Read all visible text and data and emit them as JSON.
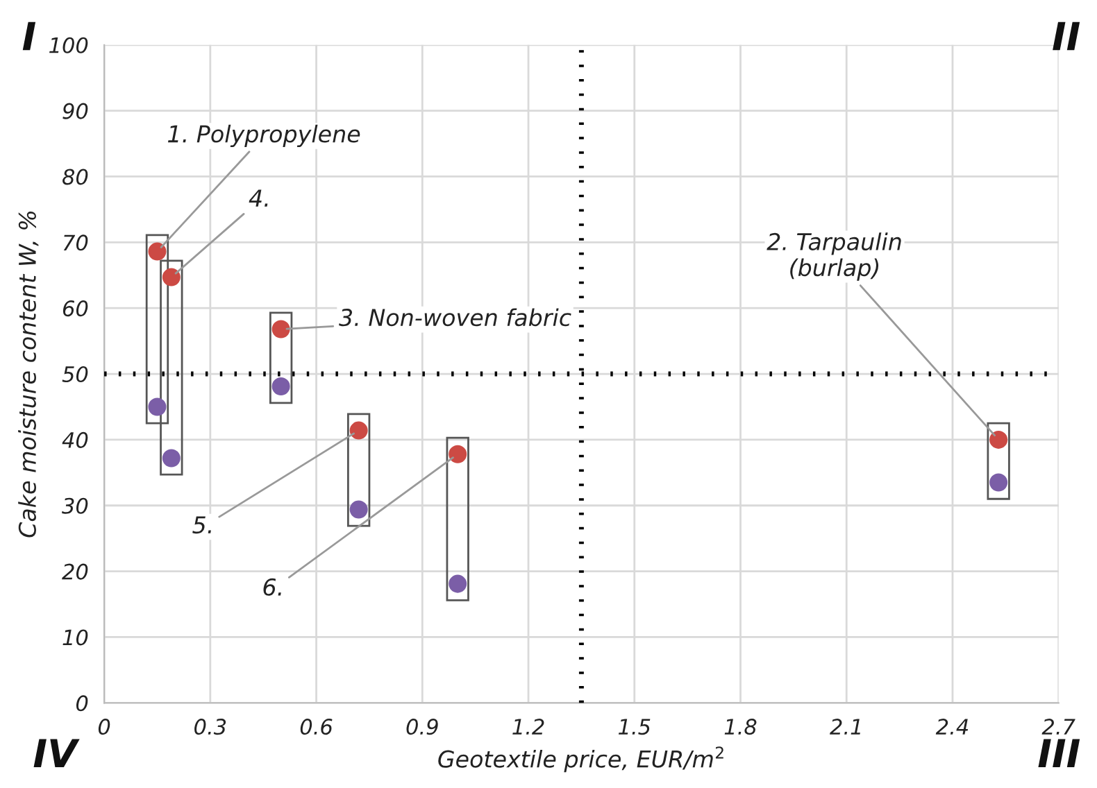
{
  "chart_data": {
    "type": "scatter",
    "xlabel": "Geotextile price, EUR/m$^{2}$",
    "ylabel": "Cake moisture content W, %",
    "series": [
      {
        "color": "#cc4a44",
        "x": [
          0.15,
          2.53,
          0.5,
          0.19,
          0.72,
          1.0
        ],
        "values": [
          68.6,
          40,
          56.8,
          64.7,
          41.4,
          37.8
        ]
      },
      {
        "color": "#7b5ea7",
        "x": [
          0.15,
          2.53,
          0.5,
          0.19,
          0.72,
          1.0
        ],
        "values": [
          45,
          33.5,
          48.1,
          37.2,
          29.4,
          18.1
        ]
      }
    ],
    "xlim": [
      0,
      2.7
    ],
    "xticks": [
      0,
      0.3,
      0.6,
      0.9,
      1.2,
      1.5,
      1.8,
      2.1,
      2.4,
      2.7
    ],
    "ylim": [
      0,
      100
    ],
    "yticks": [
      0,
      10,
      20,
      30,
      40,
      50,
      60,
      70,
      80,
      90,
      100
    ],
    "grid": true,
    "marker": "circle",
    "ref_lines": [
      {
        "axis": "y",
        "value": 50,
        "line_style": "dotted",
        "color": "#000000"
      },
      {
        "axis": "x",
        "value": 1.35,
        "line_style": "dotted",
        "color": "#000000"
      }
    ],
    "annotations": [
      {
        "text": "1. Polypropylene",
        "x": 0.15,
        "y": 68.6
      },
      {
        "text": "2. Tarpaulin\n(burlap)",
        "x": 2.53,
        "y": 40
      },
      {
        "text": "3. Non-woven fabric",
        "x": 0.5,
        "y": 56.8
      },
      {
        "text": "4.",
        "x": 0.19,
        "y": 64.7
      },
      {
        "text": "5.",
        "x": 0.72,
        "y": 41.4
      },
      {
        "text": "6.",
        "x": 1.0,
        "y": 37.8
      },
      "I",
      "II",
      "III",
      "IV"
    ]
  }
}
